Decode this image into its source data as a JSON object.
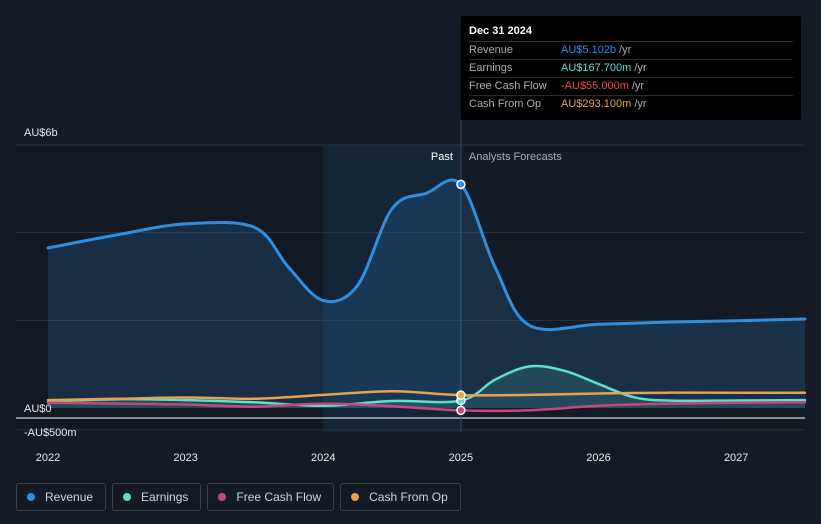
{
  "chart_data": {
    "type": "line",
    "y_unit_labels": {
      "top": "AU$6b",
      "zero": "AU$0",
      "bottom": "-AU$500m"
    },
    "ylim": [
      -500,
      6000
    ],
    "xlim": [
      2022.0,
      2027.5
    ],
    "x_ticks": [
      2022,
      2023,
      2024,
      2025,
      2026,
      2027
    ],
    "x_tick_labels": [
      "2022",
      "2023",
      "2024",
      "2025",
      "2026",
      "2027"
    ],
    "divider_x": 2025.0,
    "highlight_band": [
      2024.0,
      2025.0
    ],
    "past_label": "Past",
    "forecast_label": "Analysts Forecasts",
    "series": [
      {
        "name": "Revenue",
        "color": "#2e8fe0",
        "fill": true,
        "points": [
          [
            2022.0,
            3650
          ],
          [
            2022.5,
            3950
          ],
          [
            2023.0,
            4200
          ],
          [
            2023.5,
            4120
          ],
          [
            2023.75,
            3200
          ],
          [
            2024.0,
            2450
          ],
          [
            2024.25,
            2800
          ],
          [
            2024.5,
            4550
          ],
          [
            2024.75,
            4900
          ],
          [
            2025.0,
            5102
          ],
          [
            2025.25,
            3200
          ],
          [
            2025.5,
            1880
          ],
          [
            2026.0,
            1910
          ],
          [
            2026.5,
            1960
          ],
          [
            2027.0,
            1990
          ],
          [
            2027.5,
            2030
          ]
        ]
      },
      {
        "name": "Earnings",
        "color": "#5ee1c9",
        "fill": true,
        "points": [
          [
            2022.0,
            150
          ],
          [
            2022.5,
            200
          ],
          [
            2023.0,
            180
          ],
          [
            2023.5,
            130
          ],
          [
            2024.0,
            50
          ],
          [
            2024.5,
            160
          ],
          [
            2025.0,
            168
          ],
          [
            2025.25,
            650
          ],
          [
            2025.5,
            950
          ],
          [
            2025.75,
            850
          ],
          [
            2026.0,
            550
          ],
          [
            2026.25,
            250
          ],
          [
            2026.5,
            170
          ],
          [
            2027.0,
            170
          ],
          [
            2027.5,
            180
          ]
        ]
      },
      {
        "name": "Free Cash Flow",
        "color": "#c8467d",
        "fill": false,
        "points": [
          [
            2022.0,
            120
          ],
          [
            2022.5,
            100
          ],
          [
            2023.0,
            80
          ],
          [
            2023.5,
            30
          ],
          [
            2024.0,
            100
          ],
          [
            2024.5,
            40
          ],
          [
            2025.0,
            -55
          ],
          [
            2025.5,
            -50
          ],
          [
            2026.0,
            50
          ],
          [
            2026.5,
            100
          ],
          [
            2027.0,
            120
          ],
          [
            2027.5,
            130
          ]
        ]
      },
      {
        "name": "Cash From Op",
        "color": "#e8a24a",
        "fill": false,
        "points": [
          [
            2022.0,
            180
          ],
          [
            2022.5,
            210
          ],
          [
            2023.0,
            240
          ],
          [
            2023.5,
            210
          ],
          [
            2024.0,
            300
          ],
          [
            2024.5,
            380
          ],
          [
            2025.0,
            293
          ],
          [
            2025.5,
            300
          ],
          [
            2026.0,
            330
          ],
          [
            2026.5,
            350
          ],
          [
            2027.0,
            350
          ],
          [
            2027.5,
            350
          ]
        ]
      }
    ]
  },
  "tooltip": {
    "date": "Dec 31 2024",
    "rows": [
      {
        "name": "Revenue",
        "value": "AU$5.102b",
        "unit": "/yr",
        "color": "#2e8fe0"
      },
      {
        "name": "Earnings",
        "value": "AU$167.700m",
        "unit": "/yr",
        "color": "#5ee1c9"
      },
      {
        "name": "Free Cash Flow",
        "value": "-AU$55.000m",
        "unit": "/yr",
        "color": "#e84a4a"
      },
      {
        "name": "Cash From Op",
        "value": "AU$293.100m",
        "unit": "/yr",
        "color": "#e8a24a"
      }
    ]
  },
  "legend": [
    {
      "label": "Revenue",
      "color": "#2e8fe0"
    },
    {
      "label": "Earnings",
      "color": "#5ee1c9"
    },
    {
      "label": "Free Cash Flow",
      "color": "#c8467d"
    },
    {
      "label": "Cash From Op",
      "color": "#e8a24a"
    }
  ]
}
